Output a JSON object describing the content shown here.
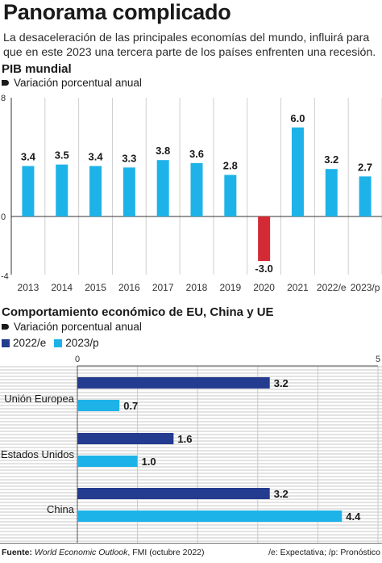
{
  "title": "Panorama complicado",
  "subtitle": "La desaceleración de las principales economías del mundo, influirá para que en este 2023 una tercera parte de los países enfrenten una recesión.",
  "section1": {
    "title": "PIB mundial",
    "subtitle": "Variación porcentual anual"
  },
  "section2": {
    "title": "Comportamiento económico de EU, China y UE",
    "subtitle": "Variación porcentual anual"
  },
  "legend": [
    "2022/e",
    "2023/p"
  ],
  "colors": {
    "bar_light": "#1eb3e8",
    "bar_negative": "#d42a35",
    "bar_dark": "#243c8f",
    "stripe_bg": "#e3e3e3"
  },
  "footer": {
    "source_label": "Fuente:",
    "source_title": "World Economic Outlook",
    "source_rest": ", FMI (octubre 2022)",
    "note": "/e: Expectativa; /p: Pronóstico"
  },
  "chart_data": [
    {
      "type": "bar",
      "title": "PIB mundial",
      "ylabel": "Variación porcentual anual",
      "categories": [
        "2013",
        "2014",
        "2015",
        "2016",
        "2017",
        "2018",
        "2019",
        "2020",
        "2021",
        "2022/e",
        "2023/p"
      ],
      "values": [
        3.4,
        3.5,
        3.4,
        3.3,
        3.8,
        3.6,
        2.8,
        -3.0,
        6.0,
        3.2,
        2.7
      ],
      "value_labels": [
        "3.4",
        "3.5",
        "3.4",
        "3.3",
        "3.8",
        "3.6",
        "2.8",
        "-3.0",
        "6.0",
        "3.2",
        "2.7"
      ],
      "yticks": [
        "8",
        "0",
        "-4"
      ],
      "ylim": [
        -4,
        8
      ],
      "grid": "vertical"
    },
    {
      "type": "bar",
      "orientation": "horizontal",
      "title": "Comportamiento económico de EU, China y UE",
      "xlabel": "Variación porcentual anual",
      "categories": [
        "Unión Europea",
        "Estados Unidos",
        "China"
      ],
      "series": [
        {
          "name": "2022/e",
          "values": [
            3.2,
            1.6,
            3.2
          ],
          "labels": [
            "3.2",
            "1.6",
            "3.2"
          ]
        },
        {
          "name": "2023/p",
          "values": [
            0.7,
            1.0,
            4.4
          ],
          "labels": [
            "0.7",
            "1.0",
            "4.4"
          ]
        }
      ],
      "xticks": [
        "0",
        "5"
      ],
      "xlim": [
        0,
        5
      ],
      "grid": "vertical"
    }
  ]
}
